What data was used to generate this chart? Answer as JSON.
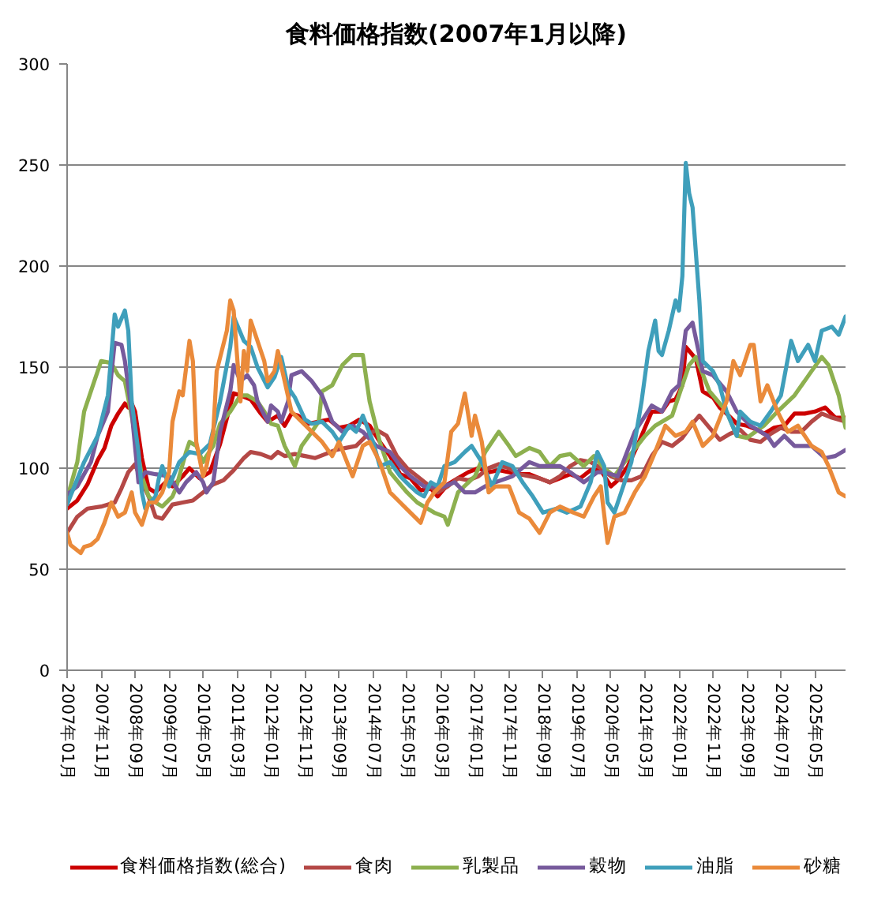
{
  "chart_data": {
    "type": "line",
    "title": "食料価格指数(2007年1月以降)",
    "xlim": [
      "2007-01",
      "2026-02"
    ],
    "xticks": [
      {
        "value": "2007-01",
        "label": "2007年01月"
      },
      {
        "value": "2007-11",
        "label": "2007年11月"
      },
      {
        "value": "2008-09",
        "label": "2008年09月"
      },
      {
        "value": "2009-07",
        "label": "2009年07月"
      },
      {
        "value": "2010-05",
        "label": "2010年05月"
      },
      {
        "value": "2011-03",
        "label": "2011年03月"
      },
      {
        "value": "2012-01",
        "label": "2012年01月"
      },
      {
        "value": "2012-11",
        "label": "2012年11月"
      },
      {
        "value": "2013-09",
        "label": "2013年09月"
      },
      {
        "value": "2014-07",
        "label": "2014年07月"
      },
      {
        "value": "2015-05",
        "label": "2015年05月"
      },
      {
        "value": "2016-03",
        "label": "2016年03月"
      },
      {
        "value": "2017-01",
        "label": "2017年01月"
      },
      {
        "value": "2017-11",
        "label": "2017年11月"
      },
      {
        "value": "2018-09",
        "label": "2018年09月"
      },
      {
        "value": "2019-07",
        "label": "2019年07月"
      },
      {
        "value": "2020-05",
        "label": "2020年05月"
      },
      {
        "value": "2021-03",
        "label": "2021年03月"
      },
      {
        "value": "2022-01",
        "label": "2022年01月"
      },
      {
        "value": "2022-11",
        "label": "2022年11月"
      },
      {
        "value": "2023-09",
        "label": "2023年09月"
      },
      {
        "value": "2024-07",
        "label": "2024年07月"
      },
      {
        "value": "2025-05",
        "label": "2025年05月"
      }
    ],
    "ylim": [
      0,
      300
    ],
    "yticks": [
      0,
      50,
      100,
      150,
      200,
      250,
      300
    ],
    "grid": "y",
    "legend": "bottom",
    "line_style": "solid",
    "series": [
      {
        "name": "食料価格指数(総合)",
        "color": "#cc0000",
        "x": [
          "2007-01",
          "2007-04",
          "2007-07",
          "2007-10",
          "2007-12",
          "2008-02",
          "2008-04",
          "2008-06",
          "2008-07",
          "2008-08",
          "2008-09",
          "2008-11",
          "2009-01",
          "2009-03",
          "2009-06",
          "2009-08",
          "2009-11",
          "2010-01",
          "2010-04",
          "2010-07",
          "2010-10",
          "2011-01",
          "2011-02",
          "2011-04",
          "2011-07",
          "2011-10",
          "2011-12",
          "2012-03",
          "2012-05",
          "2012-07",
          "2012-09",
          "2012-12",
          "2013-03",
          "2013-06",
          "2013-09",
          "2013-12",
          "2014-03",
          "2014-06",
          "2014-09",
          "2014-12",
          "2015-03",
          "2015-06",
          "2015-09",
          "2015-12",
          "2016-02",
          "2016-05",
          "2016-08",
          "2016-11",
          "2017-02",
          "2017-05",
          "2017-08",
          "2017-11",
          "2018-02",
          "2018-05",
          "2018-08",
          "2018-11",
          "2019-02",
          "2019-05",
          "2019-08",
          "2019-11",
          "2020-02",
          "2020-05",
          "2020-07",
          "2020-10",
          "2021-01",
          "2021-03",
          "2021-05",
          "2021-08",
          "2021-10",
          "2021-12",
          "2022-02",
          "2022-03",
          "2022-04",
          "2022-06",
          "2022-08",
          "2022-11",
          "2023-01",
          "2023-03",
          "2023-06",
          "2023-09",
          "2023-12",
          "2024-02",
          "2024-05",
          "2024-08",
          "2024-11",
          "2025-02",
          "2025-05",
          "2025-08",
          "2025-11",
          "2026-02"
        ],
        "values": [
          80,
          84,
          92,
          104,
          110,
          121,
          127,
          132,
          130,
          132,
          128,
          105,
          90,
          88,
          93,
          91,
          96,
          100,
          95,
          98,
          112,
          131,
          137,
          136,
          134,
          127,
          123,
          126,
          121,
          127,
          126,
          122,
          123,
          124,
          120,
          121,
          124,
          121,
          113,
          106,
          97,
          95,
          89,
          90,
          86,
          92,
          95,
          98,
          100,
          98,
          99,
          98,
          97,
          97,
          95,
          93,
          95,
          97,
          95,
          99,
          99,
          91,
          94,
          101,
          112,
          120,
          128,
          128,
          133,
          134,
          141,
          160,
          158,
          154,
          138,
          135,
          130,
          127,
          122,
          121,
          119,
          117,
          120,
          121,
          127,
          127,
          128,
          130,
          125,
          125
        ]
      },
      {
        "name": "食肉",
        "color": "#b44846",
        "x": [
          "2007-01",
          "2007-04",
          "2007-07",
          "2007-11",
          "2008-03",
          "2008-05",
          "2008-07",
          "2008-09",
          "2008-11",
          "2009-01",
          "2009-03",
          "2009-05",
          "2009-08",
          "2009-11",
          "2010-02",
          "2010-05",
          "2010-08",
          "2010-11",
          "2011-02",
          "2011-05",
          "2011-07",
          "2011-10",
          "2012-01",
          "2012-03",
          "2012-05",
          "2012-08",
          "2012-11",
          "2013-02",
          "2013-05",
          "2013-08",
          "2013-11",
          "2014-02",
          "2014-05",
          "2014-08",
          "2014-11",
          "2015-02",
          "2015-05",
          "2015-08",
          "2015-11",
          "2016-02",
          "2016-05",
          "2016-08",
          "2016-11",
          "2017-02",
          "2017-05",
          "2017-08",
          "2017-11",
          "2018-02",
          "2018-05",
          "2018-08",
          "2018-11",
          "2019-02",
          "2019-05",
          "2019-08",
          "2019-11",
          "2020-02",
          "2020-05",
          "2020-08",
          "2020-11",
          "2021-02",
          "2021-05",
          "2021-08",
          "2021-11",
          "2022-02",
          "2022-05",
          "2022-07",
          "2022-10",
          "2023-01",
          "2023-04",
          "2023-07",
          "2023-10",
          "2024-01",
          "2024-04",
          "2024-07",
          "2024-10",
          "2025-01",
          "2025-04",
          "2025-07",
          "2025-10",
          "2026-02"
        ],
        "values": [
          68,
          76,
          80,
          81,
          83,
          90,
          98,
          102,
          93,
          86,
          76,
          75,
          82,
          83,
          84,
          88,
          92,
          94,
          99,
          105,
          108,
          107,
          105,
          108,
          106,
          107,
          106,
          105,
          107,
          109,
          110,
          111,
          116,
          119,
          116,
          106,
          100,
          96,
          92,
          88,
          91,
          95,
          94,
          96,
          100,
          102,
          100,
          97,
          96,
          95,
          93,
          96,
          101,
          104,
          103,
          100,
          96,
          94,
          94,
          96,
          106,
          113,
          111,
          115,
          122,
          126,
          120,
          114,
          117,
          119,
          114,
          113,
          117,
          120,
          118,
          118,
          123,
          127,
          125,
          123
        ]
      },
      {
        "name": "乳製品",
        "color": "#8db04f",
        "x": [
          "2007-01",
          "2007-04",
          "2007-06",
          "2007-09",
          "2007-11",
          "2008-02",
          "2008-04",
          "2008-06",
          "2008-08",
          "2008-11",
          "2009-01",
          "2009-03",
          "2009-05",
          "2009-08",
          "2009-09",
          "2009-12",
          "2010-01",
          "2010-03",
          "2010-05",
          "2010-06",
          "2010-08",
          "2010-10",
          "2011-01",
          "2011-04",
          "2011-06",
          "2011-09",
          "2011-11",
          "2012-01",
          "2012-03",
          "2012-05",
          "2012-08",
          "2012-10",
          "2013-01",
          "2013-03",
          "2013-04",
          "2013-07",
          "2013-10",
          "2014-01",
          "2014-04",
          "2014-06",
          "2014-09",
          "2014-12",
          "2015-05",
          "2015-08",
          "2016-01",
          "2016-04",
          "2016-05",
          "2016-08",
          "2017-01",
          "2017-04",
          "2017-08",
          "2017-11",
          "2018-01",
          "2018-05",
          "2018-08",
          "2018-11",
          "2019-02",
          "2019-05",
          "2019-09",
          "2019-12",
          "2020-03",
          "2020-06",
          "2020-09",
          "2021-03",
          "2021-06",
          "2021-11",
          "2022-04",
          "2022-06",
          "2022-10",
          "2023-03",
          "2023-06",
          "2023-09",
          "2024-02",
          "2024-06",
          "2024-11",
          "2025-04",
          "2025-07",
          "2025-09",
          "2025-12",
          "2026-02"
        ],
        "values": [
          85,
          103,
          128,
          143,
          153,
          152,
          146,
          143,
          126,
          96,
          86,
          83,
          81,
          86,
          90,
          108,
          113,
          111,
          103,
          106,
          111,
          122,
          128,
          136,
          136,
          133,
          128,
          122,
          121,
          111,
          101,
          111,
          118,
          123,
          138,
          141,
          151,
          156,
          156,
          133,
          113,
          98,
          88,
          83,
          78,
          76,
          72,
          88,
          96,
          108,
          118,
          111,
          106,
          110,
          108,
          101,
          106,
          107,
          101,
          106,
          100,
          96,
          103,
          116,
          121,
          126,
          151,
          155,
          138,
          128,
          116,
          115,
          121,
          128,
          136,
          148,
          155,
          151,
          136,
          120
        ]
      },
      {
        "name": "穀物",
        "color": "#775a9c",
        "x": [
          "2007-01",
          "2007-04",
          "2007-08",
          "2007-10",
          "2008-01",
          "2008-02",
          "2008-03",
          "2008-05",
          "2008-06",
          "2008-08",
          "2008-10",
          "2008-12",
          "2009-03",
          "2009-07",
          "2009-10",
          "2009-12",
          "2010-03",
          "2010-05",
          "2010-06",
          "2010-08",
          "2010-10",
          "2011-01",
          "2011-02",
          "2011-04",
          "2011-06",
          "2011-08",
          "2011-09",
          "2011-12",
          "2012-01",
          "2012-03",
          "2012-04",
          "2012-06",
          "2012-07",
          "2012-10",
          "2013-01",
          "2013-04",
          "2013-07",
          "2013-10",
          "2014-01",
          "2014-04",
          "2014-08",
          "2014-12",
          "2015-03",
          "2015-06",
          "2015-10",
          "2016-04",
          "2016-07",
          "2016-10",
          "2017-01",
          "2017-04",
          "2017-07",
          "2017-12",
          "2018-05",
          "2018-08",
          "2019-02",
          "2019-05",
          "2019-09",
          "2020-01",
          "2020-03",
          "2020-07",
          "2020-12",
          "2021-05",
          "2021-08",
          "2021-11",
          "2022-01",
          "2022-03",
          "2022-05",
          "2022-08",
          "2022-11",
          "2023-03",
          "2023-06",
          "2023-10",
          "2024-03",
          "2024-05",
          "2024-08",
          "2024-11",
          "2025-04",
          "2025-08",
          "2025-11",
          "2026-02"
        ],
        "values": [
          87,
          91,
          103,
          116,
          128,
          146,
          162,
          161,
          153,
          128,
          93,
          98,
          97,
          96,
          88,
          93,
          98,
          93,
          88,
          93,
          118,
          138,
          151,
          143,
          146,
          141,
          133,
          123,
          131,
          128,
          123,
          133,
          146,
          148,
          143,
          136,
          123,
          118,
          121,
          118,
          111,
          108,
          101,
          96,
          91,
          91,
          93,
          88,
          88,
          91,
          93,
          96,
          103,
          101,
          101,
          98,
          93,
          98,
          98,
          96,
          118,
          131,
          128,
          138,
          141,
          168,
          172,
          148,
          146,
          138,
          128,
          121,
          116,
          111,
          116,
          111,
          111,
          105,
          106,
          109
        ]
      },
      {
        "name": "油脂",
        "color": "#3f9fbb",
        "x": [
          "2007-01",
          "2007-06",
          "2007-10",
          "2008-01",
          "2008-03",
          "2008-04",
          "2008-06",
          "2008-07",
          "2008-08",
          "2008-10",
          "2008-11",
          "2008-12",
          "2009-03",
          "2009-04",
          "2009-05",
          "2009-07",
          "2009-10",
          "2010-01",
          "2010-04",
          "2010-07",
          "2010-10",
          "2011-01",
          "2011-02",
          "2011-05",
          "2011-07",
          "2011-09",
          "2011-12",
          "2012-02",
          "2012-04",
          "2012-06",
          "2012-08",
          "2012-11",
          "2013-01",
          "2013-04",
          "2013-07",
          "2013-09",
          "2013-12",
          "2014-02",
          "2014-04",
          "2014-07",
          "2014-09",
          "2014-12",
          "2015-03",
          "2015-06",
          "2015-08",
          "2015-10",
          "2015-12",
          "2016-02",
          "2016-04",
          "2016-07",
          "2016-10",
          "2016-12",
          "2017-03",
          "2017-06",
          "2017-09",
          "2017-12",
          "2018-03",
          "2018-06",
          "2018-09",
          "2019-01",
          "2019-04",
          "2019-08",
          "2019-11",
          "2020-01",
          "2020-03",
          "2020-04",
          "2020-06",
          "2020-08",
          "2020-11",
          "2021-02",
          "2021-04",
          "2021-06",
          "2021-07",
          "2021-08",
          "2021-10",
          "2021-12",
          "2022-01",
          "2022-02",
          "2022-03",
          "2022-04",
          "2022-05",
          "2022-07",
          "2022-08",
          "2022-11",
          "2023-01",
          "2023-03",
          "2023-06",
          "2023-07",
          "2023-10",
          "2024-01",
          "2024-04",
          "2024-07",
          "2024-10",
          "2024-12",
          "2025-03",
          "2025-05",
          "2025-07",
          "2025-10",
          "2025-12",
          "2026-02"
        ],
        "values": [
          82,
          103,
          116,
          136,
          176,
          170,
          178,
          168,
          133,
          108,
          88,
          80,
          86,
          95,
          101,
          91,
          103,
          108,
          107,
          112,
          133,
          160,
          175,
          163,
          160,
          150,
          140,
          145,
          155,
          140,
          135,
          124,
          122,
          123,
          118,
          113,
          121,
          118,
          126,
          113,
          101,
          103,
          96,
          91,
          88,
          86,
          93,
          91,
          101,
          103,
          108,
          111,
          103,
          91,
          103,
          101,
          93,
          86,
          78,
          80,
          78,
          81,
          93,
          108,
          101,
          83,
          78,
          88,
          103,
          133,
          158,
          173,
          158,
          156,
          168,
          183,
          178,
          195,
          251,
          236,
          229,
          183,
          153,
          148,
          141,
          128,
          116,
          128,
          123,
          121,
          128,
          136,
          163,
          153,
          161,
          153,
          168,
          170,
          166,
          175
        ]
      },
      {
        "name": "砂糖",
        "color": "#ea8a3a",
        "x": [
          "2007-01",
          "2007-02",
          "2007-05",
          "2007-06",
          "2007-08",
          "2007-10",
          "2007-12",
          "2008-02",
          "2008-04",
          "2008-06",
          "2008-08",
          "2008-09",
          "2008-11",
          "2009-01",
          "2009-03",
          "2009-05",
          "2009-07",
          "2009-08",
          "2009-10",
          "2009-11",
          "2010-01",
          "2010-02",
          "2010-03",
          "2010-05",
          "2010-06",
          "2010-08",
          "2010-09",
          "2010-12",
          "2011-01",
          "2011-02",
          "2011-04",
          "2011-05",
          "2011-06",
          "2011-07",
          "2011-08",
          "2011-11",
          "2011-12",
          "2012-02",
          "2012-03",
          "2012-07",
          "2012-10",
          "2013-01",
          "2013-04",
          "2013-07",
          "2013-09",
          "2014-01",
          "2014-04",
          "2014-06",
          "2014-09",
          "2014-12",
          "2015-03",
          "2015-06",
          "2015-09",
          "2015-11",
          "2016-01",
          "2016-04",
          "2016-06",
          "2016-08",
          "2016-10",
          "2016-12",
          "2017-01",
          "2017-03",
          "2017-05",
          "2017-07",
          "2017-11",
          "2018-02",
          "2018-05",
          "2018-08",
          "2018-11",
          "2019-02",
          "2019-06",
          "2019-09",
          "2019-12",
          "2020-02",
          "2020-04",
          "2020-06",
          "2020-09",
          "2020-12",
          "2021-03",
          "2021-06",
          "2021-09",
          "2021-12",
          "2022-03",
          "2022-05",
          "2022-08",
          "2022-11",
          "2023-03",
          "2023-05",
          "2023-07",
          "2023-10",
          "2023-11",
          "2024-01",
          "2024-03",
          "2024-06",
          "2024-09",
          "2024-12",
          "2025-04",
          "2025-07",
          "2025-09",
          "2025-12",
          "2026-02"
        ],
        "values": [
          68,
          62,
          58,
          61,
          62,
          65,
          73,
          83,
          76,
          78,
          88,
          78,
          72,
          83,
          83,
          88,
          98,
          123,
          138,
          136,
          163,
          153,
          113,
          96,
          101,
          118,
          148,
          168,
          183,
          178,
          133,
          158,
          148,
          173,
          168,
          153,
          143,
          148,
          158,
          128,
          123,
          118,
          113,
          106,
          113,
          96,
          111,
          113,
          103,
          88,
          83,
          78,
          73,
          83,
          88,
          93,
          118,
          122,
          137,
          116,
          126,
          113,
          88,
          91,
          91,
          78,
          75,
          68,
          78,
          81,
          78,
          76,
          86,
          91,
          63,
          76,
          78,
          88,
          96,
          108,
          121,
          116,
          118,
          123,
          111,
          116,
          133,
          153,
          146,
          161,
          161,
          133,
          141,
          128,
          118,
          121,
          111,
          108,
          101,
          88,
          86
        ]
      }
    ]
  }
}
